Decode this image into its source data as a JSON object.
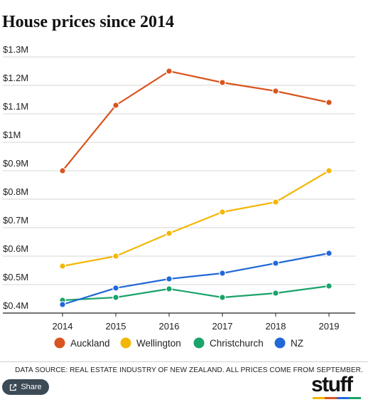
{
  "header": {
    "title": "House prices since 2014"
  },
  "chart_data": {
    "type": "line",
    "title": "House prices since 2014",
    "x": [
      "2014",
      "2015",
      "2016",
      "2017",
      "2018",
      "2019"
    ],
    "y_ticks": [
      "$0.4M",
      "$0.5M",
      "$0.6M",
      "$0.7M",
      "$0.8M",
      "$0.9M",
      "$1M",
      "$1.1M",
      "$1.2M",
      "$1.3M"
    ],
    "ylim": [
      0.4,
      1.3
    ],
    "y_unit": "$M",
    "grid": true,
    "legend_position": "bottom",
    "series": [
      {
        "name": "Auckland",
        "color": "#d9541e",
        "values": [
          0.9,
          1.13,
          1.25,
          1.21,
          1.18,
          1.14
        ]
      },
      {
        "name": "Wellington",
        "color": "#f2b705",
        "values": [
          0.565,
          0.6,
          0.68,
          0.755,
          0.79,
          0.9
        ]
      },
      {
        "name": "Christchurch",
        "color": "#1aa36a",
        "values": [
          0.445,
          0.455,
          0.485,
          0.455,
          0.47,
          0.495
        ]
      },
      {
        "name": "NZ",
        "color": "#2168d8",
        "values": [
          0.43,
          0.488,
          0.52,
          0.54,
          0.575,
          0.61
        ]
      }
    ]
  },
  "footer": {
    "source": "DATA SOURCE: REAL ESTATE INDUSTRY OF NEW ZEALAND. ALL PRICES COME FROM SEPTEMBER.",
    "share_label": "Share",
    "share_icon": "share-icon",
    "logo_text": "stuff",
    "logo_bar_colors": [
      "#f2b705",
      "#d9541e",
      "#2168d8",
      "#1aa36a"
    ]
  }
}
